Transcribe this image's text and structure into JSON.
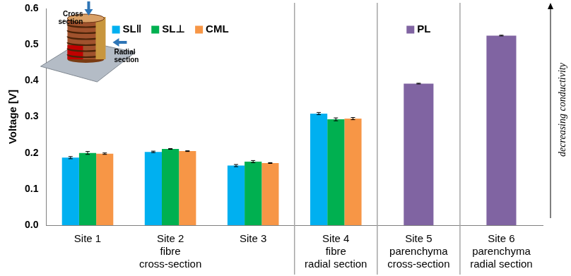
{
  "chart_data": {
    "type": "bar",
    "y_label": "Voltage [V]",
    "categories": [
      "Site 1",
      "Site 2",
      "Site 3",
      "Site 4",
      "Site 5",
      "Site 6"
    ],
    "category_groups": [
      null,
      "fibre cross-section",
      null,
      "fibre radial section",
      "parenchyma cross-section",
      "parenchyma radial section"
    ],
    "series": [
      {
        "name": "SL‖",
        "color": "#00b0f0",
        "values": [
          0.187,
          0.203,
          0.165,
          0.309,
          null,
          null
        ],
        "errors": [
          0.003,
          0.002,
          0.003,
          0.003,
          null,
          null
        ]
      },
      {
        "name": "SL⊥",
        "color": "#00b050",
        "values": [
          0.2,
          0.211,
          0.176,
          0.293,
          null,
          null
        ],
        "errors": [
          0.004,
          0.001,
          0.003,
          0.004,
          null,
          null
        ]
      },
      {
        "name": "CML",
        "color": "#f79646",
        "values": [
          0.198,
          0.205,
          0.172,
          0.295,
          null,
          null
        ],
        "errors": [
          0.002,
          0.001,
          0.001,
          0.003,
          null,
          null
        ]
      },
      {
        "name": "PL",
        "color": "#8064a2",
        "values": [
          null,
          null,
          null,
          null,
          0.392,
          0.525
        ],
        "errors": [
          null,
          null,
          null,
          null,
          0.001,
          0.001
        ]
      }
    ],
    "ylim": [
      0,
      0.6
    ],
    "yticks": [
      {
        "value": 0,
        "label": "0.0"
      },
      0.1,
      0.2,
      0.3,
      0.4,
      0.5,
      0.6
    ],
    "grid": false,
    "legend": "top",
    "annotations": [
      "decreasing conductivity"
    ],
    "inset_labels": [
      "Cross section",
      "Radial section"
    ]
  }
}
